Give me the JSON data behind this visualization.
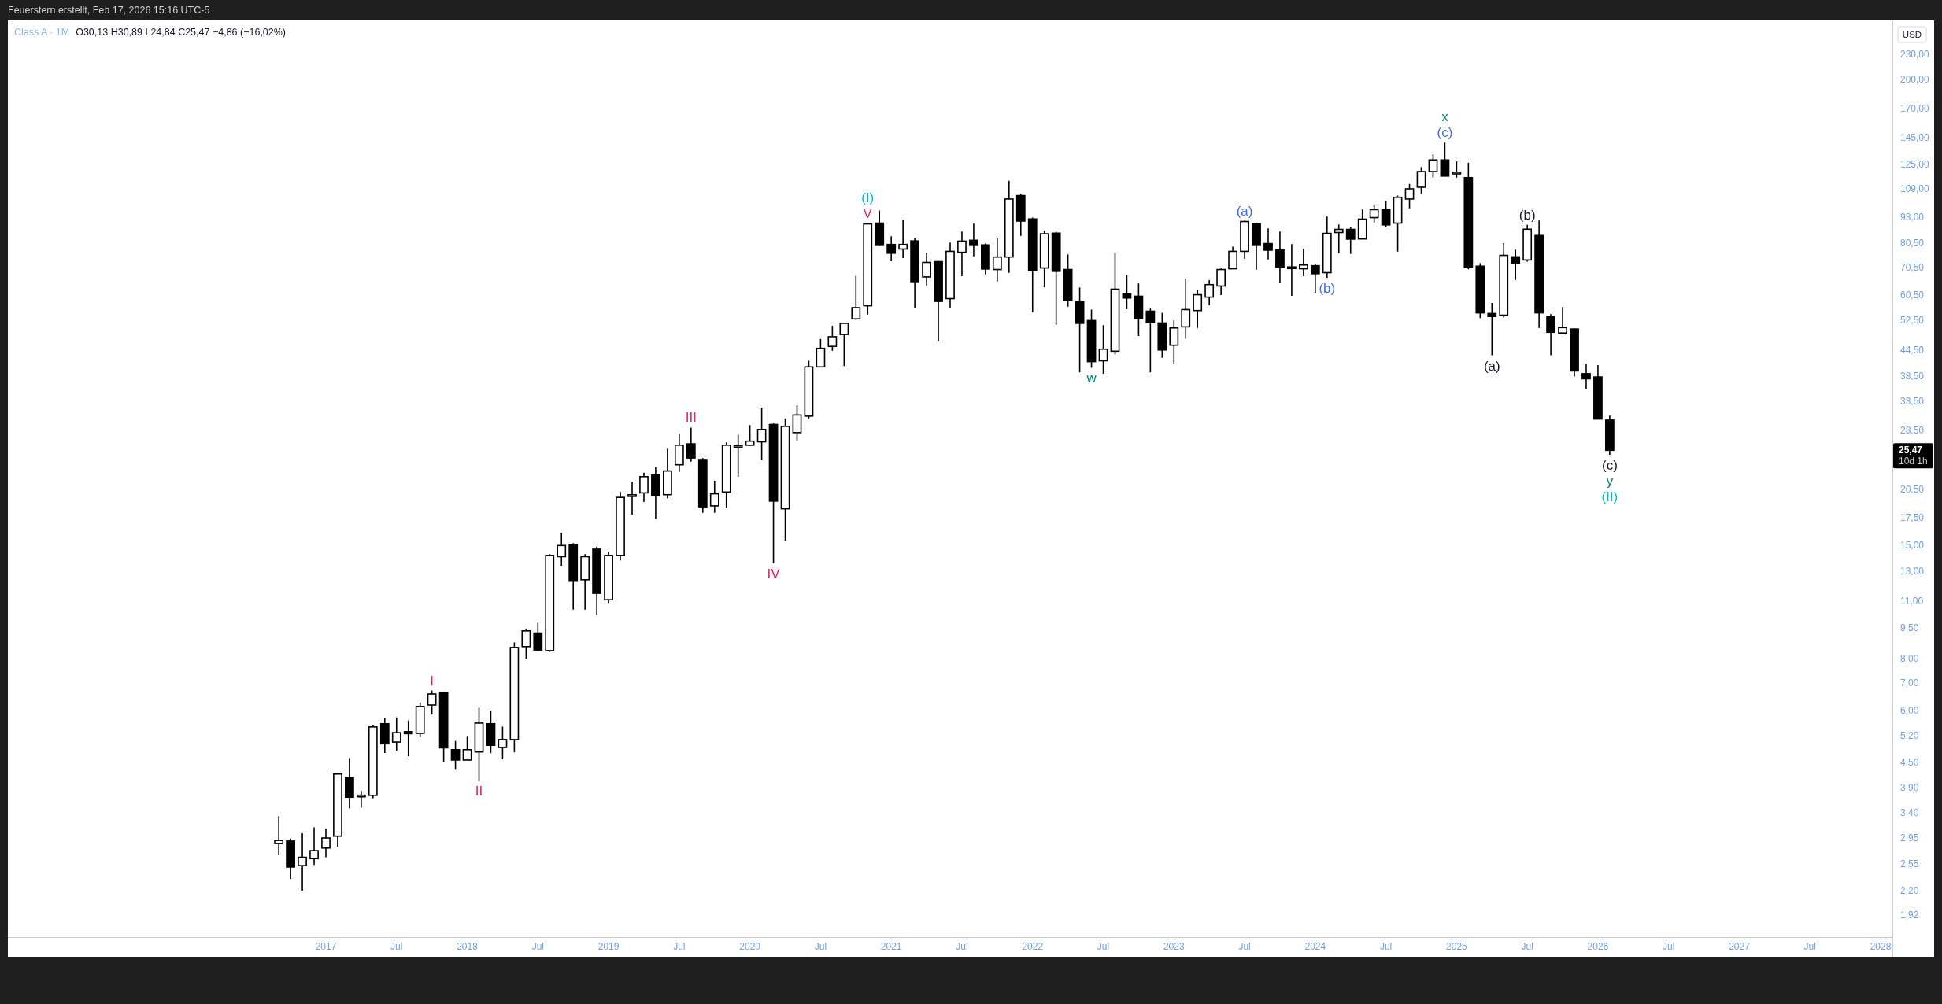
{
  "chart_data": {
    "type": "candlestick",
    "title": "Class A · 1M",
    "subtitle": "O30,13 H30,89 L24,84 C25,47 −4,86 (−16,02%)",
    "ylabel": "USD",
    "color": "#000000",
    "log": true,
    "x": [
      "2016-09",
      "2016-10",
      "2016-11",
      "2016-12",
      "2017-01",
      "2017-02",
      "2017-03",
      "2017-04",
      "2017-05",
      "2017-06",
      "2017-07",
      "2017-08",
      "2017-09",
      "2017-10",
      "2017-11",
      "2017-12",
      "2018-01",
      "2018-02",
      "2018-03",
      "2018-04",
      "2018-05",
      "2018-06",
      "2018-07",
      "2018-08",
      "2018-09",
      "2018-10",
      "2018-11",
      "2018-12",
      "2019-01",
      "2019-02",
      "2019-03",
      "2019-04",
      "2019-05",
      "2019-06",
      "2019-07",
      "2019-08",
      "2019-09",
      "2019-10",
      "2019-11",
      "2019-12",
      "2020-01",
      "2020-02",
      "2020-03",
      "2020-04",
      "2020-05",
      "2020-06",
      "2020-07",
      "2020-08",
      "2020-09",
      "2020-10",
      "2020-11",
      "2020-12",
      "2021-01",
      "2021-02",
      "2021-03",
      "2021-04",
      "2021-05",
      "2021-06",
      "2021-07",
      "2021-08",
      "2021-09",
      "2021-10",
      "2021-11",
      "2021-12",
      "2022-01",
      "2022-02",
      "2022-03",
      "2022-04",
      "2022-05",
      "2022-06",
      "2022-07",
      "2022-08",
      "2022-09",
      "2022-10",
      "2022-11",
      "2022-12",
      "2023-01",
      "2023-02",
      "2023-03",
      "2023-04",
      "2023-05",
      "2023-06",
      "2023-07",
      "2023-08",
      "2023-09",
      "2023-10",
      "2023-11",
      "2023-12",
      "2024-01",
      "2024-02",
      "2024-03",
      "2024-04",
      "2024-05",
      "2024-06",
      "2024-07",
      "2024-08",
      "2024-09",
      "2024-10",
      "2024-11",
      "2024-12",
      "2025-01",
      "2025-02",
      "2025-03",
      "2025-04",
      "2025-05",
      "2025-06",
      "2025-07",
      "2025-08",
      "2025-09",
      "2025-10",
      "2025-11",
      "2025-12",
      "2026-01",
      "2026-02"
    ],
    "ohlc": [
      [
        2.86,
        3.33,
        2.68,
        2.91
      ],
      [
        2.9,
        2.94,
        2.35,
        2.51
      ],
      [
        2.53,
        3.03,
        2.2,
        2.65
      ],
      [
        2.63,
        3.13,
        2.54,
        2.75
      ],
      [
        2.79,
        3.11,
        2.65,
        2.95
      ],
      [
        2.98,
        4.21,
        2.81,
        4.21
      ],
      [
        4.13,
        4.6,
        3.48,
        3.7
      ],
      [
        3.72,
        3.83,
        3.49,
        3.73
      ],
      [
        3.74,
        5.53,
        3.68,
        5.47
      ],
      [
        5.57,
        5.75,
        4.73,
        4.98
      ],
      [
        5.03,
        5.77,
        4.79,
        5.3
      ],
      [
        5.33,
        5.67,
        4.65,
        5.27
      ],
      [
        5.28,
        6.27,
        5.16,
        6.13
      ],
      [
        6.18,
        6.7,
        5.86,
        6.57
      ],
      [
        6.61,
        6.64,
        4.51,
        4.87
      ],
      [
        4.82,
        5.06,
        4.33,
        4.55
      ],
      [
        4.55,
        5.18,
        4.55,
        4.82
      ],
      [
        4.76,
        6.09,
        4.06,
        5.59
      ],
      [
        5.57,
        5.98,
        4.73,
        4.94
      ],
      [
        4.88,
        5.48,
        4.57,
        5.1
      ],
      [
        5.1,
        8.75,
        4.75,
        8.51
      ],
      [
        8.55,
        9.43,
        7.99,
        9.33
      ],
      [
        9.22,
        9.76,
        8.35,
        8.39
      ],
      [
        8.36,
        14.3,
        8.3,
        14.2
      ],
      [
        14.1,
        16.1,
        13.4,
        15.0
      ],
      [
        15.1,
        15.2,
        10.5,
        12.3
      ],
      [
        12.4,
        14.3,
        10.5,
        14.1
      ],
      [
        14.7,
        14.9,
        10.2,
        11.5
      ],
      [
        11.1,
        14.5,
        10.9,
        14.2
      ],
      [
        14.2,
        20.2,
        13.8,
        19.6
      ],
      [
        19.8,
        21.4,
        17.8,
        19.8
      ],
      [
        20.1,
        22.5,
        19.1,
        22.0
      ],
      [
        22.2,
        23.2,
        17.4,
        19.8
      ],
      [
        19.9,
        25.7,
        19.5,
        22.7
      ],
      [
        23.5,
        27.9,
        22.6,
        26.2
      ],
      [
        26.4,
        28.9,
        23.9,
        24.4
      ],
      [
        24.2,
        24.4,
        18.0,
        18.6
      ],
      [
        18.7,
        21.5,
        18.0,
        20.0
      ],
      [
        20.2,
        26.6,
        18.5,
        26.2
      ],
      [
        26.0,
        27.8,
        22.0,
        26.0
      ],
      [
        26.2,
        29.3,
        26.1,
        26.8
      ],
      [
        26.7,
        32.3,
        24.1,
        28.6
      ],
      [
        29.4,
        29.6,
        13.6,
        19.2
      ],
      [
        18.4,
        30.4,
        15.4,
        29.1
      ],
      [
        28.1,
        32.7,
        26.9,
        31.0
      ],
      [
        30.8,
        41.9,
        30.4,
        40.5
      ],
      [
        40.5,
        47.3,
        40.5,
        44.9
      ],
      [
        45.4,
        50.9,
        44.3,
        47.9
      ],
      [
        48.5,
        51.6,
        40.7,
        51.6
      ],
      [
        52.9,
        67.2,
        52.6,
        56.3
      ],
      [
        56.9,
        90.1,
        54.2,
        89.7
      ],
      [
        90.1,
        96.6,
        79.3,
        79.6
      ],
      [
        80.0,
        83.7,
        72.9,
        76.2
      ],
      [
        78.0,
        91.8,
        74.2,
        80.0
      ],
      [
        81.6,
        82.9,
        56.1,
        64.8
      ],
      [
        66.8,
        76.4,
        63.7,
        72.4
      ],
      [
        72.7,
        73.0,
        46.7,
        58.3
      ],
      [
        59.2,
        80.9,
        56.1,
        77.0
      ],
      [
        76.6,
        86.0,
        67.1,
        81.5
      ],
      [
        81.9,
        89.8,
        74.9,
        79.6
      ],
      [
        79.8,
        80.5,
        67.7,
        69.8
      ],
      [
        69.6,
        82.7,
        65.1,
        74.6
      ],
      [
        74.6,
        114,
        68.3,
        103
      ],
      [
        105,
        106,
        83.9,
        91.1
      ],
      [
        92.2,
        92.9,
        54.9,
        69.2
      ],
      [
        70.2,
        86.4,
        63.1,
        84.9
      ],
      [
        85.2,
        85.9,
        51.2,
        68.9
      ],
      [
        69.6,
        75.7,
        56.6,
        58.6
      ],
      [
        58.2,
        63.0,
        39.3,
        51.6
      ],
      [
        52.4,
        55.7,
        40.3,
        41.7
      ],
      [
        41.9,
        51.1,
        39.0,
        44.7
      ],
      [
        44.2,
        76.4,
        43.4,
        62.4
      ],
      [
        60.8,
        67.5,
        55.8,
        59.4
      ],
      [
        60.0,
        64.4,
        48.1,
        53.0
      ],
      [
        55.2,
        56.0,
        39.3,
        51.8
      ],
      [
        51.7,
        54.7,
        42.6,
        44.5
      ],
      [
        45.7,
        52.4,
        41.1,
        50.3
      ],
      [
        50.6,
        66.1,
        47.4,
        55.7
      ],
      [
        55.4,
        62.2,
        50.3,
        60.5
      ],
      [
        59.7,
        65.6,
        57.1,
        64.0
      ],
      [
        63.5,
        70.0,
        60.4,
        69.6
      ],
      [
        69.9,
        79.0,
        69.9,
        77.0
      ],
      [
        77.0,
        91.3,
        73.9,
        90.9
      ],
      [
        89.8,
        90.2,
        69.5,
        79.6
      ],
      [
        80.4,
        87.5,
        73.6,
        77.5
      ],
      [
        77.6,
        86.0,
        64.5,
        70.5
      ],
      [
        70.3,
        80.2,
        60.1,
        70.3
      ],
      [
        69.9,
        78.1,
        67.1,
        71.4
      ],
      [
        71.1,
        71.7,
        61.2,
        68.0
      ],
      [
        68.4,
        93.4,
        66.5,
        85.1
      ],
      [
        85.5,
        89.4,
        76.2,
        87.0
      ],
      [
        87.0,
        88.3,
        75.9,
        82.4
      ],
      [
        82.5,
        97.2,
        82.5,
        92.1
      ],
      [
        92.9,
        99.4,
        90.4,
        97.1
      ],
      [
        97.2,
        102,
        88.0,
        89.2
      ],
      [
        90.1,
        105,
        76.9,
        104
      ],
      [
        103,
        112,
        97.8,
        109
      ],
      [
        110,
        123,
        106,
        120
      ],
      [
        120,
        132,
        116,
        128
      ],
      [
        128,
        141,
        117,
        117
      ],
      [
        119,
        127,
        116,
        119
      ],
      [
        116,
        126,
        69.7,
        70.3
      ],
      [
        70.9,
        72.1,
        53.1,
        54.7
      ],
      [
        54.5,
        57.8,
        43.2,
        53.6
      ],
      [
        54.0,
        80.6,
        53.3,
        75.3
      ],
      [
        74.7,
        77.7,
        65.7,
        72.1
      ],
      [
        73.4,
        89.2,
        72.7,
        87.1
      ],
      [
        84.1,
        91.4,
        50.3,
        54.7
      ],
      [
        53.7,
        54.3,
        43.2,
        49.1
      ],
      [
        48.9,
        56.5,
        48.5,
        50.4
      ],
      [
        50.0,
        50.2,
        38.4,
        39.6
      ],
      [
        39.0,
        41.1,
        35.8,
        37.9
      ],
      [
        38.3,
        40.9,
        30.3,
        30.3
      ],
      [
        30.13,
        30.89,
        24.84,
        25.47
      ]
    ],
    "xlim": [
      "2014-10",
      "2028-02"
    ],
    "ylim": [
      1.7,
      278
    ],
    "xticks": [
      {
        "value": "2017-01",
        "label": "2017"
      },
      {
        "value": "2017-07",
        "label": "Jul"
      },
      {
        "value": "2018-01",
        "label": "2018"
      },
      {
        "value": "2018-07",
        "label": "Jul"
      },
      {
        "value": "2019-01",
        "label": "2019"
      },
      {
        "value": "2019-07",
        "label": "Jul"
      },
      {
        "value": "2020-01",
        "label": "2020"
      },
      {
        "value": "2020-07",
        "label": "Jul"
      },
      {
        "value": "2021-01",
        "label": "2021"
      },
      {
        "value": "2021-07",
        "label": "Jul"
      },
      {
        "value": "2022-01",
        "label": "2022"
      },
      {
        "value": "2022-07",
        "label": "Jul"
      },
      {
        "value": "2023-01",
        "label": "2023"
      },
      {
        "value": "2023-07",
        "label": "Jul"
      },
      {
        "value": "2024-01",
        "label": "2024"
      },
      {
        "value": "2024-07",
        "label": "Jul"
      },
      {
        "value": "2025-01",
        "label": "2025"
      },
      {
        "value": "2025-07",
        "label": "Jul"
      },
      {
        "value": "2026-01",
        "label": "2026"
      },
      {
        "value": "2026-07",
        "label": "Jul"
      },
      {
        "value": "2027-01",
        "label": "2027"
      },
      {
        "value": "2027-07",
        "label": "Jul"
      },
      {
        "value": "2028-01",
        "label": "2028"
      }
    ],
    "yticks": [
      {
        "value": 230,
        "label": "230,00"
      },
      {
        "value": 200,
        "label": "200,00"
      },
      {
        "value": 170,
        "label": "170,00"
      },
      {
        "value": 145,
        "label": "145,00"
      },
      {
        "value": 125,
        "label": "125,00"
      },
      {
        "value": 109,
        "label": "109,00"
      },
      {
        "value": 93,
        "label": "93,00"
      },
      {
        "value": 80.5,
        "label": "80,50"
      },
      {
        "value": 70.5,
        "label": "70,50"
      },
      {
        "value": 60.5,
        "label": "60,50"
      },
      {
        "value": 52.5,
        "label": "52,50"
      },
      {
        "value": 44.5,
        "label": "44,50"
      },
      {
        "value": 38.5,
        "label": "38,50"
      },
      {
        "value": 33.5,
        "label": "33,50"
      },
      {
        "value": 28.5,
        "label": "28,50"
      },
      {
        "value": 20.5,
        "label": "20,50"
      },
      {
        "value": 17.5,
        "label": "17,50"
      },
      {
        "value": 15,
        "label": "15,00"
      },
      {
        "value": 13,
        "label": "13,00"
      },
      {
        "value": 11,
        "label": "11,00"
      },
      {
        "value": 9.5,
        "label": "9,50"
      },
      {
        "value": 8,
        "label": "8,00"
      },
      {
        "value": 7,
        "label": "7,00"
      },
      {
        "value": 6,
        "label": "6,00"
      },
      {
        "value": 5.2,
        "label": "5,20"
      },
      {
        "value": 4.5,
        "label": "4,50"
      },
      {
        "value": 3.9,
        "label": "3,90"
      },
      {
        "value": 3.4,
        "label": "3,40"
      },
      {
        "value": 2.95,
        "label": "2,95"
      },
      {
        "value": 2.55,
        "label": "2,55"
      },
      {
        "value": 2.2,
        "label": "2,20"
      },
      {
        "value": 1.92,
        "label": "1,92"
      }
    ],
    "annotations": [
      "Feuerstern erstellt, Feb 17, 2026 15:16 UTC-5",
      "25,47",
      "10d 1h",
      {
        "text": "I",
        "x": "2017-10",
        "y": 6.7
      },
      {
        "text": "II",
        "x": "2018-02",
        "y": 4.06
      },
      {
        "text": "III",
        "x": "2019-08",
        "y": 28.9
      },
      {
        "text": "IV",
        "x": "2020-03",
        "y": 13.6
      },
      {
        "text": "V",
        "x": "2020-11",
        "y": 90.1
      },
      {
        "text": "(I)",
        "x": "2020-11",
        "y": 90.1
      },
      {
        "text": "w",
        "x": "2022-06",
        "y": 40.3
      },
      {
        "text": "(a)",
        "x": "2023-07",
        "y": 91.3
      },
      {
        "text": "(b)",
        "x": "2024-02",
        "y": 66.5
      },
      {
        "text": "(c)",
        "x": "2024-12",
        "y": 141
      },
      {
        "text": "x",
        "x": "2024-12",
        "y": 141
      },
      {
        "text": "(a)",
        "x": "2025-04",
        "y": 43.2
      },
      {
        "text": "(b)",
        "x": "2025-07",
        "y": 89.2
      },
      {
        "text": "(c)",
        "x": "2026-02",
        "y": 24.84
      },
      {
        "text": "y",
        "x": "2026-02",
        "y": 24.84
      },
      {
        "text": "(II)",
        "x": "2026-02",
        "y": 24.84
      }
    ]
  }
}
